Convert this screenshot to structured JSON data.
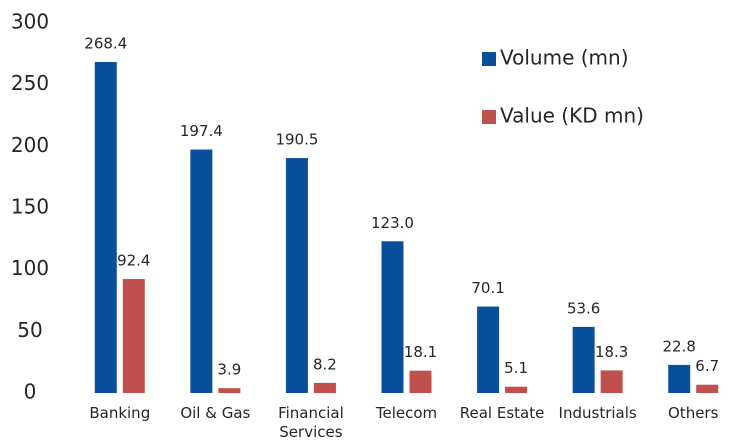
{
  "chart_data": {
    "type": "bar",
    "categories": [
      "Banking",
      "Oil & Gas",
      "Financial Services",
      "Telecom",
      "Real Estate",
      "Industrials",
      "Others"
    ],
    "series": [
      {
        "name": "Volume (mn)",
        "color": "#0a4f9c",
        "values": [
          268.4,
          197.4,
          190.5,
          123.0,
          70.1,
          53.6,
          22.8
        ],
        "value_labels": [
          "268.4",
          "197.4",
          "190.5",
          "123.0",
          "70.1",
          "53.6",
          "22.8"
        ]
      },
      {
        "name": "Value (KD mn)",
        "color": "#c0504d",
        "values": [
          92.4,
          3.9,
          8.2,
          18.1,
          5.1,
          18.3,
          6.7
        ],
        "value_labels": [
          "92.4",
          "3.9",
          "8.2",
          "18.1",
          "5.1",
          "18.3",
          "6.7"
        ]
      }
    ],
    "ylim": [
      0,
      300
    ],
    "yticks": [
      0,
      50,
      100,
      150,
      200,
      250,
      300
    ],
    "grid": false
  }
}
